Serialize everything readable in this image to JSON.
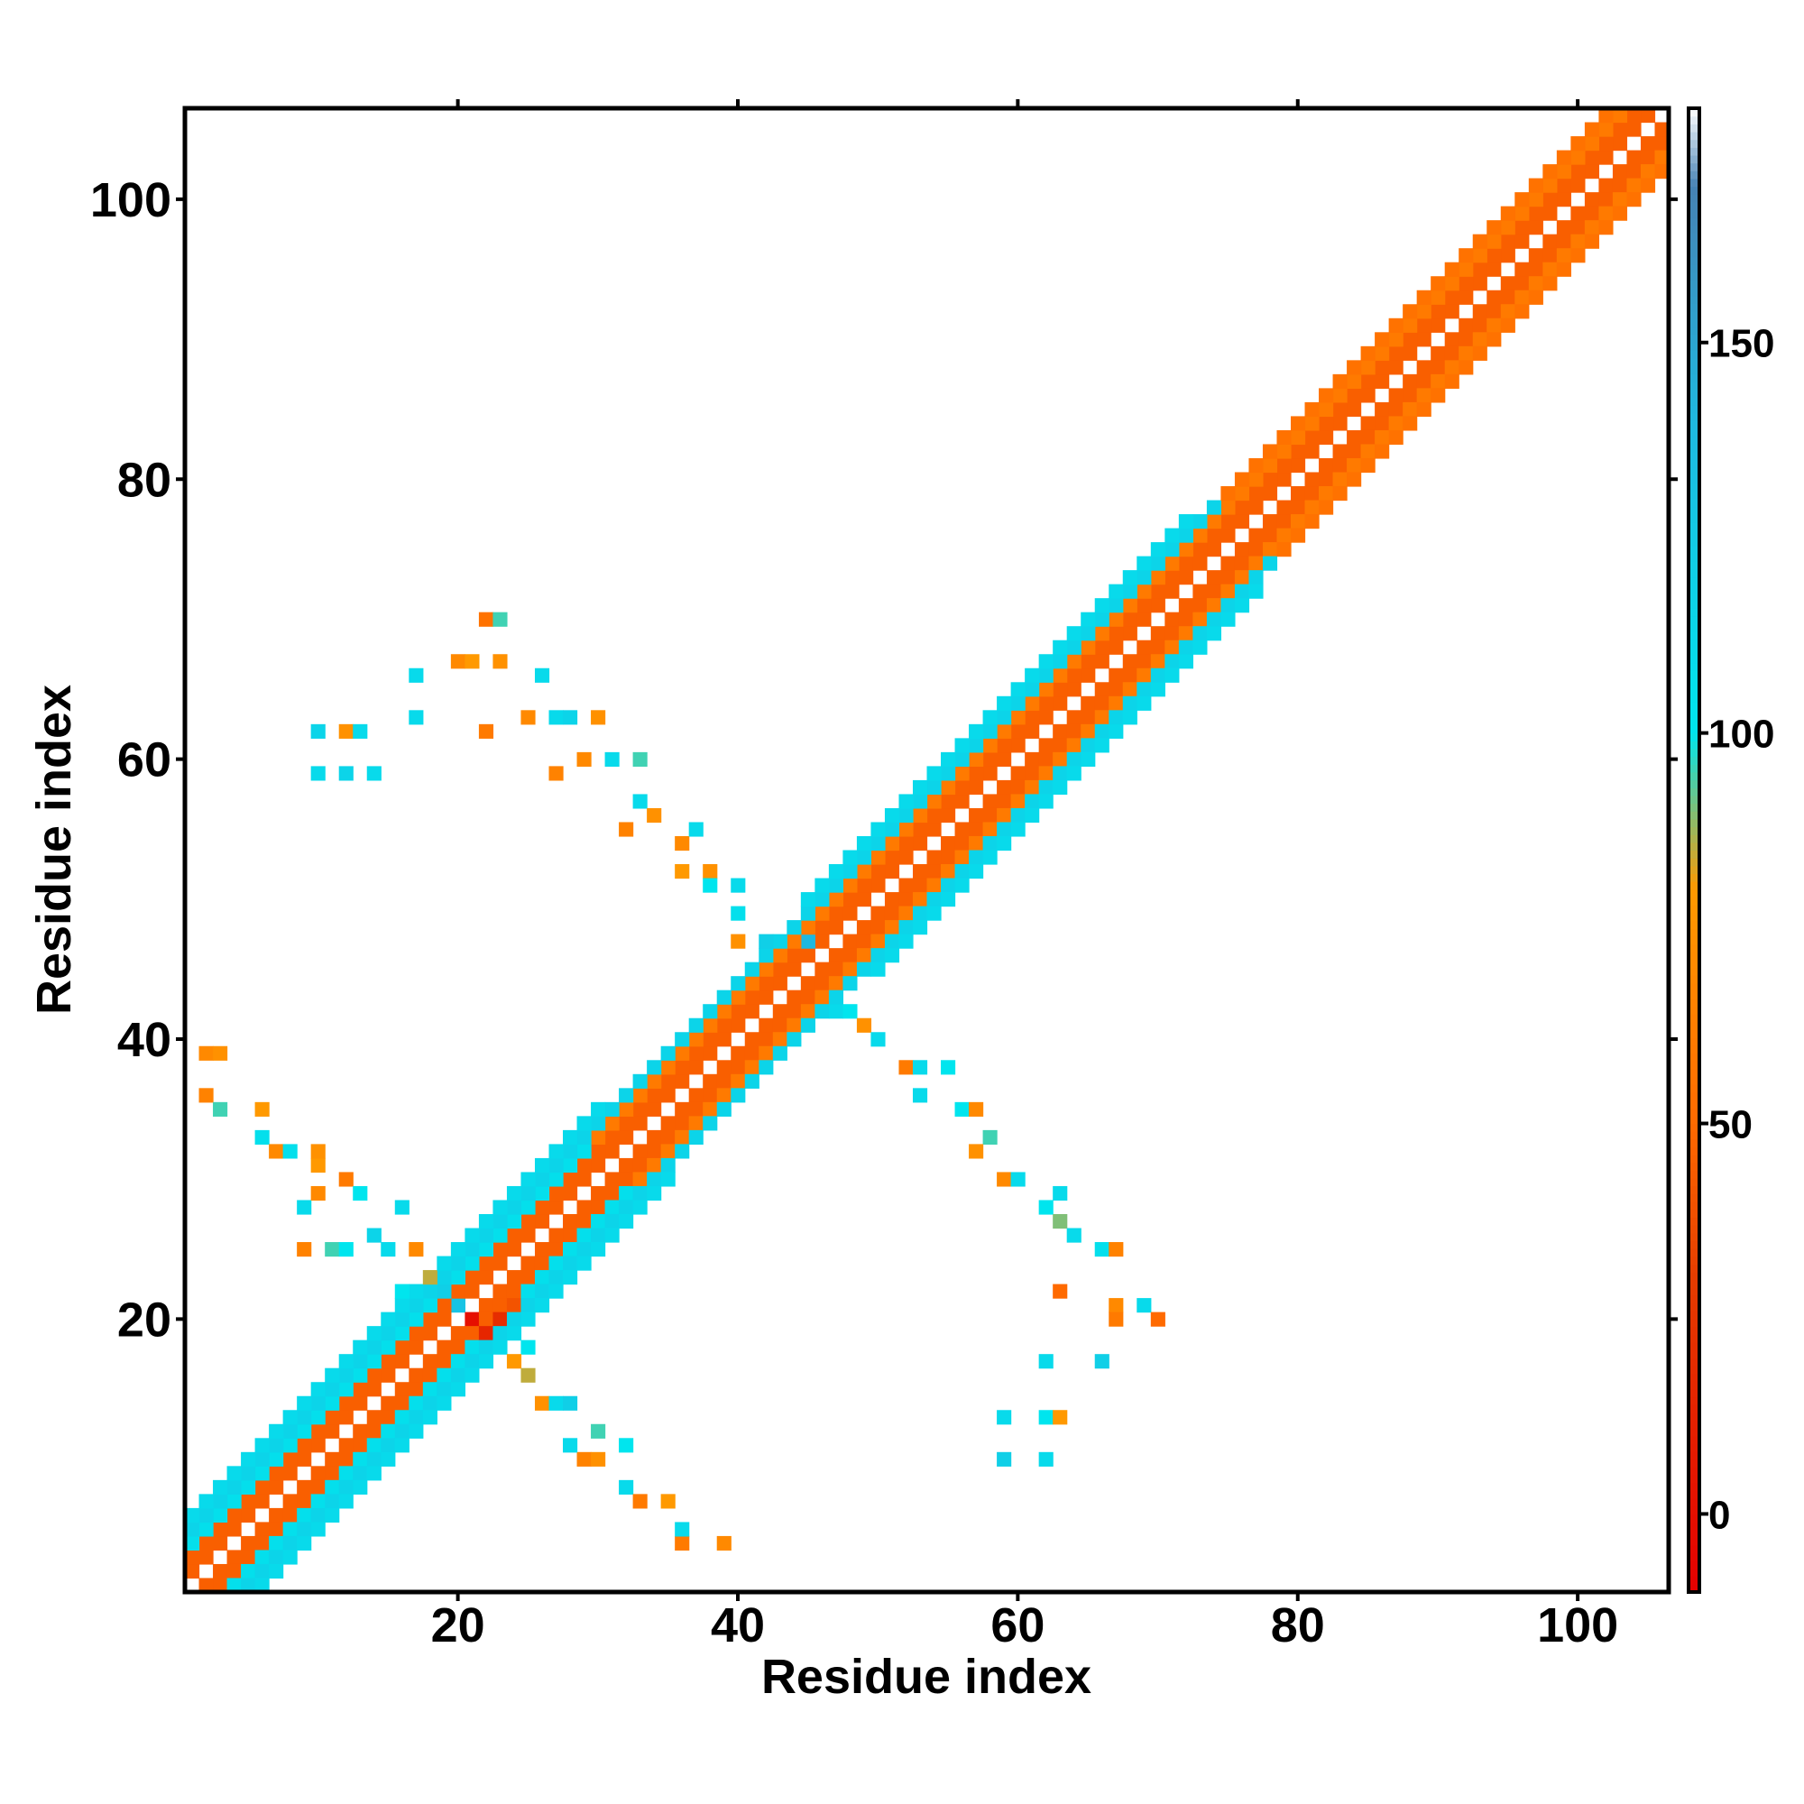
{
  "chart_data": {
    "type": "heatmap",
    "title": "",
    "xlabel": "Residue index",
    "ylabel": "Residue index",
    "xlim": [
      1,
      106
    ],
    "ylim": [
      1,
      106
    ],
    "x_ticks": [
      20,
      40,
      60,
      80,
      100
    ],
    "y_ticks": [
      20,
      40,
      60,
      80,
      100
    ],
    "colorbar": {
      "range": [
        -10,
        180
      ],
      "ticks": [
        0,
        50,
        100,
        150
      ],
      "stops": [
        {
          "value": -10,
          "color": "#e60000"
        },
        {
          "value": 30,
          "color": "#e63c00"
        },
        {
          "value": 50,
          "color": "#ff6a00"
        },
        {
          "value": 80,
          "color": "#ff9900"
        },
        {
          "value": 100,
          "color": "#00e5ee"
        },
        {
          "value": 140,
          "color": "#1fb8e0"
        },
        {
          "value": 170,
          "color": "#4682b4"
        },
        {
          "value": 180,
          "color": "#ffffff"
        }
      ]
    },
    "diagonal_bands": [
      {
        "offsets": [
          1,
          2
        ],
        "range": [
          1,
          106
        ],
        "value": 45
      },
      {
        "offsets": [
          3
        ],
        "range": [
          1,
          30
        ],
        "value": 105
      },
      {
        "offsets": [
          3
        ],
        "range": [
          30,
          106
        ],
        "value": 60
      },
      {
        "offsets": [
          4
        ],
        "range": [
          1,
          75
        ],
        "value": 115
      },
      {
        "offsets": [
          4
        ],
        "range": [
          75,
          106
        ],
        "value": 55
      },
      {
        "offsets": [
          5
        ],
        "range": [
          1,
          30
        ],
        "value": 110
      },
      {
        "offsets": [
          5
        ],
        "range": [
          45,
          72
        ],
        "value": 110
      }
    ],
    "contacts": [
      [
        2,
        39,
        70
      ],
      [
        3,
        39,
        75
      ],
      [
        2,
        36,
        65
      ],
      [
        3,
        35,
        95
      ],
      [
        6,
        35,
        80
      ],
      [
        6,
        33,
        105
      ],
      [
        7,
        32,
        70
      ],
      [
        8,
        32,
        105
      ],
      [
        10,
        31,
        80
      ],
      [
        10,
        32,
        75
      ],
      [
        9,
        28,
        110
      ],
      [
        10,
        29,
        70
      ],
      [
        12,
        30,
        60
      ],
      [
        13,
        29,
        100
      ],
      [
        14,
        26,
        115
      ],
      [
        15,
        25,
        110
      ],
      [
        9,
        25,
        65
      ],
      [
        11,
        25,
        95
      ],
      [
        12,
        25,
        100
      ],
      [
        16,
        28,
        110
      ],
      [
        17,
        25,
        70
      ],
      [
        16,
        22,
        100
      ],
      [
        18,
        23,
        85
      ],
      [
        19,
        22,
        120
      ],
      [
        20,
        21,
        130
      ],
      [
        21,
        20,
        0
      ],
      [
        22,
        19,
        15
      ],
      [
        23,
        20,
        20
      ],
      [
        24,
        21,
        40
      ],
      [
        25,
        18,
        100
      ],
      [
        24,
        17,
        80
      ],
      [
        25,
        16,
        85
      ],
      [
        26,
        14,
        75
      ],
      [
        27,
        14,
        110
      ],
      [
        28,
        14,
        120
      ],
      [
        30,
        12,
        95
      ],
      [
        29,
        10,
        65
      ],
      [
        30,
        10,
        75
      ],
      [
        28,
        11,
        110
      ],
      [
        32,
        11,
        100
      ],
      [
        32,
        8,
        110
      ],
      [
        33,
        7,
        60
      ],
      [
        35,
        7,
        80
      ],
      [
        36,
        4,
        60
      ],
      [
        36,
        5,
        110
      ],
      [
        39,
        4,
        70
      ],
      [
        32,
        55,
        65
      ],
      [
        33,
        57,
        110
      ],
      [
        34,
        56,
        75
      ],
      [
        36,
        54,
        70
      ],
      [
        37,
        55,
        110
      ],
      [
        36,
        52,
        80
      ],
      [
        38,
        52,
        75
      ],
      [
        38,
        51,
        100
      ],
      [
        40,
        51,
        110
      ],
      [
        40,
        49,
        105
      ],
      [
        40,
        47,
        75
      ],
      [
        42,
        47,
        120
      ],
      [
        45,
        47,
        140
      ],
      [
        47,
        42,
        110
      ],
      [
        48,
        42,
        100
      ],
      [
        49,
        41,
        75
      ],
      [
        50,
        40,
        110
      ],
      [
        52,
        38,
        60
      ],
      [
        53,
        38,
        110
      ],
      [
        55,
        38,
        100
      ],
      [
        53,
        36,
        110
      ],
      [
        56,
        35,
        100
      ],
      [
        57,
        35,
        70
      ],
      [
        58,
        33,
        95
      ],
      [
        57,
        32,
        75
      ],
      [
        59,
        30,
        70
      ],
      [
        60,
        30,
        110
      ],
      [
        63,
        29,
        110
      ],
      [
        62,
        28,
        100
      ],
      [
        63,
        27,
        90
      ],
      [
        64,
        26,
        110
      ],
      [
        66,
        25,
        105
      ],
      [
        67,
        25,
        65
      ],
      [
        63,
        22,
        50
      ],
      [
        67,
        21,
        70
      ],
      [
        67,
        20,
        60
      ],
      [
        69,
        21,
        110
      ],
      [
        70,
        20,
        50
      ],
      [
        62,
        17,
        110
      ],
      [
        66,
        17,
        120
      ],
      [
        59,
        13,
        110
      ],
      [
        62,
        13,
        100
      ],
      [
        63,
        13,
        80
      ],
      [
        59,
        10,
        120
      ],
      [
        62,
        10,
        110
      ],
      [
        10,
        59,
        110
      ],
      [
        12,
        59,
        115
      ],
      [
        14,
        59,
        110
      ],
      [
        10,
        62,
        115
      ],
      [
        12,
        62,
        75
      ],
      [
        13,
        62,
        110
      ],
      [
        17,
        63,
        110
      ],
      [
        17,
        66,
        110
      ],
      [
        20,
        67,
        70
      ],
      [
        21,
        67,
        80
      ],
      [
        23,
        67,
        75
      ],
      [
        22,
        70,
        55
      ],
      [
        23,
        70,
        95
      ],
      [
        26,
        66,
        110
      ],
      [
        25,
        63,
        70
      ],
      [
        27,
        63,
        110
      ],
      [
        28,
        63,
        115
      ],
      [
        30,
        63,
        75
      ],
      [
        29,
        60,
        70
      ],
      [
        31,
        60,
        110
      ],
      [
        33,
        60,
        95
      ],
      [
        27,
        59,
        65
      ],
      [
        22,
        62,
        60
      ]
    ]
  }
}
